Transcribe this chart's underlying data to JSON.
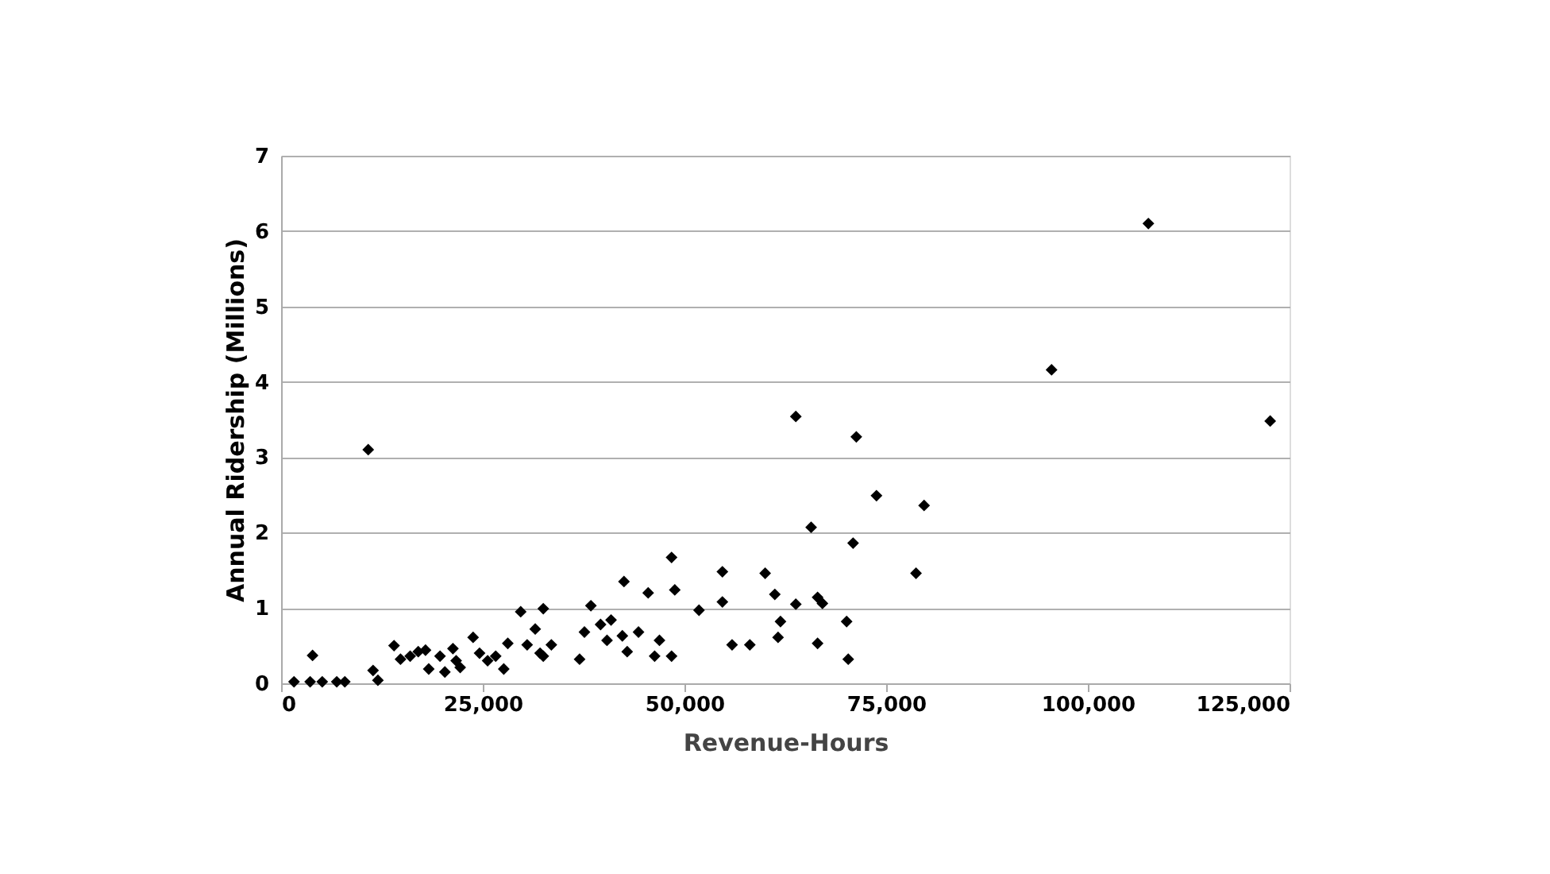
{
  "chart_data": {
    "type": "scatter",
    "xlabel": "Revenue-Hours",
    "ylabel": "Annual Ridership (Millions)",
    "marker": "diamond",
    "grid": "y",
    "legend": false,
    "xlim": [
      0,
      125000
    ],
    "xticks": [
      {
        "value": 0,
        "label": "0"
      },
      {
        "value": 25000,
        "label": "25,000"
      },
      {
        "value": 50000,
        "label": "50,000"
      },
      {
        "value": 75000,
        "label": "75,000"
      },
      {
        "value": 100000,
        "label": "100,000"
      },
      {
        "value": 125000,
        "label": "125,000"
      }
    ],
    "ylim": [
      0,
      7
    ],
    "yticks": [
      0,
      1,
      2,
      3,
      4,
      5,
      6,
      7
    ],
    "series": [
      {
        "color": "#000000",
        "x": [
          1600,
          3600,
          5100,
          6900,
          7900,
          3900,
          10800,
          11400,
          12000,
          14000,
          14800,
          16000,
          17000,
          17900,
          18300,
          19700,
          20300,
          21300,
          21700,
          22200,
          23800,
          24600,
          25600,
          26600,
          27600,
          28100,
          29700,
          32500,
          31500,
          30500,
          32100,
          33500,
          32500,
          37000,
          38400,
          37600,
          39600,
          40900,
          40400,
          42300,
          42500,
          42900,
          44300,
          45500,
          46900,
          46300,
          48400,
          48400,
          48800,
          51800,
          54700,
          54700,
          55900,
          58100,
          60000,
          61200,
          61900,
          61600,
          63800,
          63800,
          65700,
          66500,
          67100,
          66500,
          70100,
          70300,
          70900,
          71300,
          73800,
          78700,
          79700,
          107500,
          95500,
          122600
        ],
        "values": [
          0.02,
          0.02,
          0.02,
          0.02,
          0.02,
          0.37,
          3.1,
          0.17,
          0.04,
          0.5,
          0.32,
          0.36,
          0.42,
          0.44,
          0.19,
          0.36,
          0.15,
          0.46,
          0.3,
          0.21,
          0.61,
          0.4,
          0.3,
          0.36,
          0.19,
          0.53,
          0.95,
          0.99,
          0.72,
          0.51,
          0.4,
          0.51,
          0.36,
          0.32,
          1.03,
          0.68,
          0.78,
          0.84,
          0.57,
          0.63,
          1.35,
          0.42,
          0.68,
          1.2,
          0.57,
          0.36,
          0.36,
          1.67,
          1.24,
          0.97,
          1.48,
          1.08,
          0.51,
          0.51,
          1.46,
          1.18,
          0.82,
          0.61,
          3.54,
          1.05,
          2.07,
          1.14,
          1.06,
          0.53,
          0.82,
          0.32,
          1.86,
          3.27,
          2.49,
          1.46,
          2.36,
          6.1,
          4.16,
          3.48
        ]
      }
    ]
  }
}
